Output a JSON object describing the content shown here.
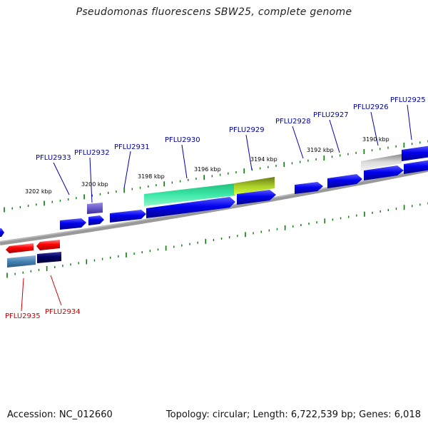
{
  "title": "Pseudomonas fluorescens SBW25, complete genome",
  "footer": {
    "accession": "Accession: NC_012660",
    "summary": "Topology: circular; Length: 6,722,539 bp; Genes: 6,018"
  },
  "kbp_labels": [
    "3202 kbp",
    "3200 kbp",
    "3198 kbp",
    "3196 kbp",
    "3194 kbp",
    "3192 kbp",
    "3190 kbp"
  ],
  "gene_labels_top": [
    "PFLU2933",
    "PFLU2932",
    "PFLU2931",
    "PFLU2930",
    "PFLU2929",
    "PFLU2928",
    "PFLU2927",
    "PFLU2926",
    "PFLU2925"
  ],
  "gene_labels_bottom": [
    "PFLU2935",
    "PFLU2934"
  ],
  "colors": {
    "forward": "#0000ee",
    "reverse": "#ff0000",
    "navy": "#000066",
    "steel": "#4682b4",
    "tick": "#0a7a0a",
    "label_blue": "#0000aa",
    "label_red": "#cc0000",
    "backbone": "#888888"
  }
}
